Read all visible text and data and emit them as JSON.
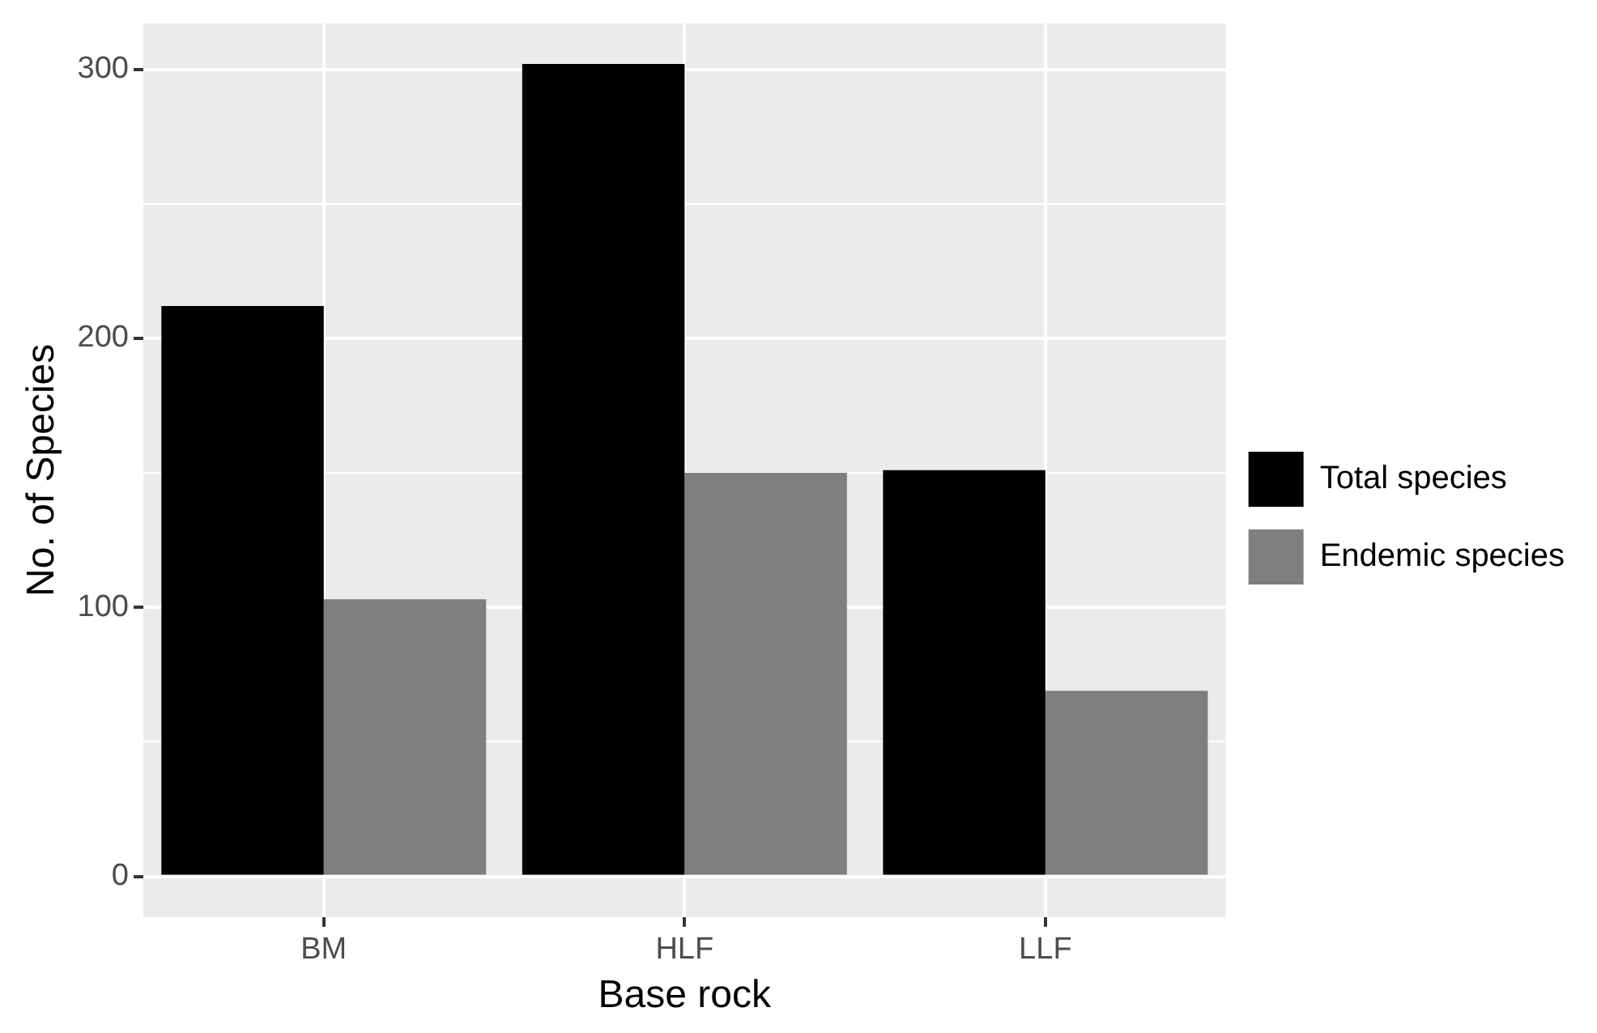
{
  "chart_data": {
    "type": "bar",
    "xlabel": "Base rock",
    "ylabel": "No. of Species",
    "categories": [
      "BM",
      "HLF",
      "LLF"
    ],
    "series": [
      {
        "name": "Total species",
        "color": "#000000",
        "values": [
          212,
          302,
          151
        ]
      },
      {
        "name": "Endemic species",
        "color": "#7f7f7f",
        "values": [
          103,
          150,
          69
        ]
      }
    ],
    "ylim": [
      -15.1,
      317.1
    ],
    "yticks": [
      0,
      {
        "value": 50,
        "label": null
      },
      100,
      {
        "value": 150,
        "label": null
      },
      200,
      {
        "value": 250,
        "label": null
      },
      300
    ],
    "grid": true,
    "legend": "right"
  }
}
